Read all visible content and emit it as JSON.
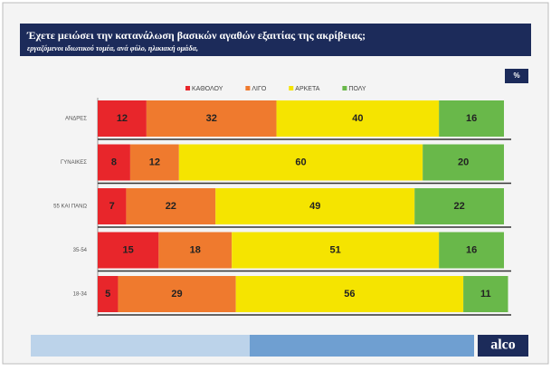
{
  "chart_data": {
    "type": "stacked-bar-horizontal",
    "title": "Έχετε μειώσει την κατανάλωση βασικών αγαθών εξαιτίας της ακρίβειας;",
    "subtitle": "εργαζόμενοι ιδιωτικού τομέα, ανά φύλο, ηλικιακή ομάδα,",
    "unit_badge": "%",
    "brand": "alco",
    "categories": [
      "ΑΝΔΡΕΣ",
      "ΓΥΝΑΙΚΕΣ",
      "55 ΚΑΙ ΠΑΝΩ",
      "35-54",
      "18-34"
    ],
    "series": [
      {
        "name": "ΚΑΘΟΛΟΥ",
        "color": "#e8262b",
        "values": [
          12,
          8,
          7,
          15,
          5
        ]
      },
      {
        "name": "ΛΙΓΟ",
        "color": "#ef7a2e",
        "values": [
          32,
          12,
          22,
          18,
          29
        ]
      },
      {
        "name": "ΑΡΚΕΤΑ",
        "color": "#f5e400",
        "values": [
          40,
          60,
          49,
          51,
          56
        ]
      },
      {
        "name": "ΠΟΛΥ",
        "color": "#69b84a",
        "values": [
          16,
          20,
          22,
          16,
          11
        ]
      }
    ],
    "xlim": [
      0,
      100
    ],
    "legend": "top"
  }
}
